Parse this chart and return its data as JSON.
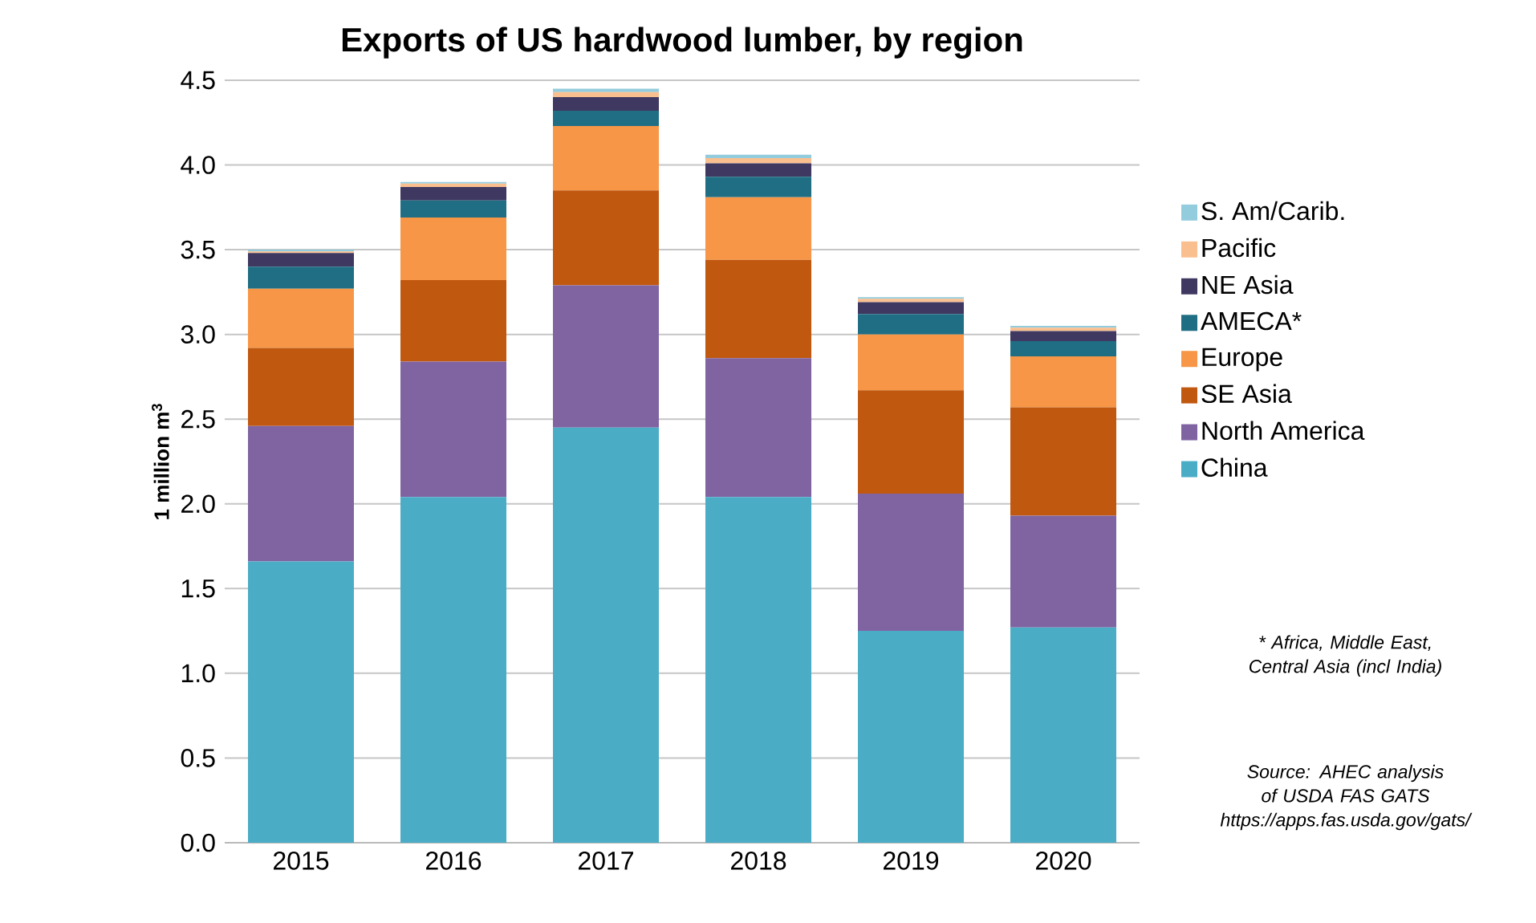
{
  "chart_data": {
    "type": "bar",
    "stacked": true,
    "title": "**Exports of US hardwood lumber, by region**",
    "ylabel": "1 million m$^{3}$",
    "categories": [
      "2015",
      "2016",
      "2017",
      "2018",
      "2019",
      "2020"
    ],
    "series": [
      {
        "name": "China",
        "color": "#4bacc6",
        "values": [
          1.66,
          2.04,
          2.45,
          2.04,
          1.25,
          1.27
        ]
      },
      {
        "name": "North America",
        "color": "#8064a2",
        "values": [
          0.8,
          0.8,
          0.84,
          0.82,
          0.81,
          0.66
        ]
      },
      {
        "name": "SE Asia",
        "color": "#c0580f",
        "values": [
          0.46,
          0.48,
          0.56,
          0.58,
          0.61,
          0.64
        ]
      },
      {
        "name": "Europe",
        "color": "#f79646",
        "values": [
          0.35,
          0.37,
          0.38,
          0.37,
          0.33,
          0.3
        ]
      },
      {
        "name": "AMECA*",
        "color": "#1f6e84",
        "values": [
          0.13,
          0.1,
          0.09,
          0.12,
          0.12,
          0.09
        ]
      },
      {
        "name": "NE Asia",
        "color": "#3f3860",
        "values": [
          0.08,
          0.08,
          0.08,
          0.08,
          0.07,
          0.06
        ]
      },
      {
        "name": "Pacific",
        "color": "#fabf8f",
        "values": [
          0.01,
          0.02,
          0.03,
          0.03,
          0.02,
          0.02
        ]
      },
      {
        "name": "S. Am/Carib.",
        "color": "#93cddd",
        "values": [
          0.01,
          0.01,
          0.02,
          0.02,
          0.01,
          0.01
        ]
      }
    ],
    "ylim": [
      0,
      4.5
    ],
    "yticks": [
      {
        "value": 0,
        "label": "0.0"
      },
      {
        "value": 0.5,
        "label": "0.5"
      },
      {
        "value": 1,
        "label": "1.0"
      },
      {
        "value": 1.5,
        "label": "1.5"
      },
      {
        "value": 2,
        "label": "2.0"
      },
      {
        "value": 2.5,
        "label": "2.5"
      },
      {
        "value": 3,
        "label": "3.0"
      },
      {
        "value": 3.5,
        "label": "3.5"
      },
      {
        "value": 4,
        "label": "4.0"
      },
      {
        "value": 4.5,
        "label": "4.5"
      }
    ],
    "grid": "y",
    "legend": "right",
    "annotations": [
      "* Africa, Middle East, Central Asia (incl India)",
      "Source: AHEC analysis of USDA FAS GATS https://apps.fas.usda.gov/gats/"
    ]
  }
}
